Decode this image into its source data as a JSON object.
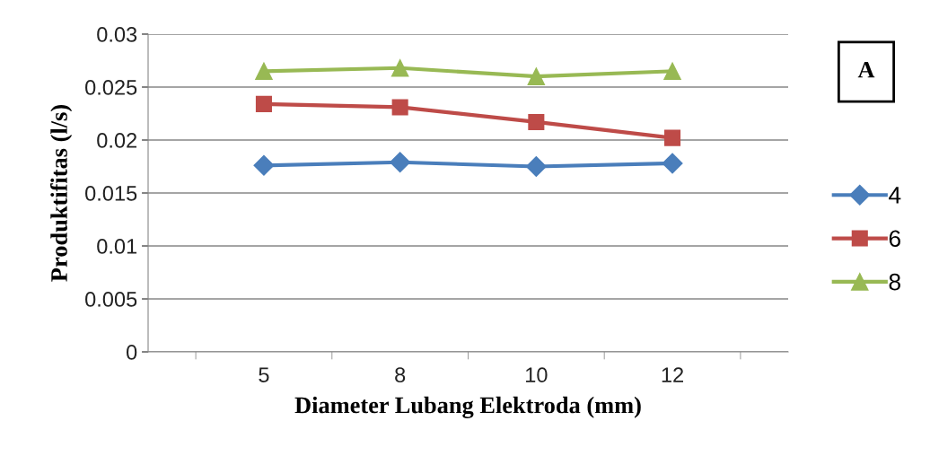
{
  "chart_data": {
    "type": "line",
    "xlabel": "Diameter Lubang Elektroda (mm)",
    "ylabel": "Produktifitas (l/s)",
    "categories": [
      "5",
      "8",
      "10",
      "12"
    ],
    "series": [
      {
        "name": "4",
        "color": "#4a7ebb",
        "marker": "diamond",
        "values": [
          0.0176,
          0.0179,
          0.0175,
          0.0178
        ]
      },
      {
        "name": "6",
        "color": "#be4b48",
        "marker": "square",
        "values": [
          0.0234,
          0.0231,
          0.0217,
          0.0202
        ]
      },
      {
        "name": "8",
        "color": "#98b954",
        "marker": "triangle",
        "values": [
          0.0265,
          0.0268,
          0.026,
          0.0265
        ]
      }
    ],
    "ylim": [
      0,
      0.03
    ],
    "yticks": [
      0,
      0.005,
      0.01,
      0.015,
      0.02,
      0.025,
      0.03
    ],
    "grid": "y",
    "legend": "right",
    "line_style": "solid",
    "annotations": [
      "A"
    ]
  }
}
